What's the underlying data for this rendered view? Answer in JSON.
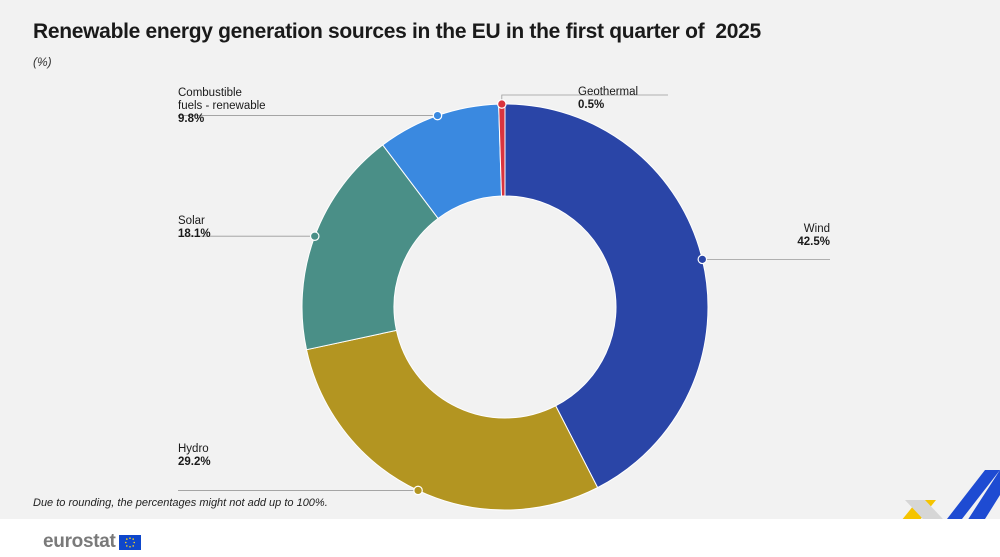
{
  "title": "Renewable energy generation sources in the EU in the first quarter of  2025",
  "subtitle": "(%)",
  "footnote": "Due to rounding, the percentages might not add up to 100%.",
  "logo": {
    "text": "eurostat",
    "flag_icon": "eu-flag-icon"
  },
  "colors": {
    "Wind": "#2a45a7",
    "Hydro": "#b39521",
    "Solar": "#4a8f87",
    "Combustible fuels - renewable": "#3a89e0",
    "Geothermal": "#d9343e",
    "background": "#f2f2f2"
  },
  "chart_data": {
    "type": "pie",
    "style": "donut",
    "title": "Renewable energy generation sources in the EU in the first quarter of  2025",
    "unit": "(%)",
    "slices": [
      {
        "name": "Wind",
        "label_lines": [
          "Wind"
        ],
        "value": 42.5,
        "value_label": "42.5%"
      },
      {
        "name": "Hydro",
        "label_lines": [
          "Hydro"
        ],
        "value": 29.2,
        "value_label": "29.2%"
      },
      {
        "name": "Solar",
        "label_lines": [
          "Solar"
        ],
        "value": 18.1,
        "value_label": "18.1%"
      },
      {
        "name": "Combustible fuels - renewable",
        "label_lines": [
          "Combustible",
          "fuels - renewable"
        ],
        "value": 9.8,
        "value_label": "9.8%"
      },
      {
        "name": "Geothermal",
        "label_lines": [
          "Geothermal"
        ],
        "value": 0.5,
        "value_label": "0.5%"
      }
    ],
    "start": "top",
    "direction": "clockwise",
    "legend": "none"
  }
}
